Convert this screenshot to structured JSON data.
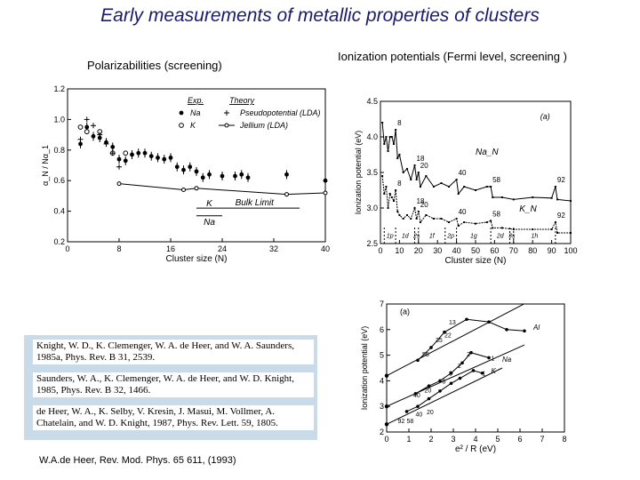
{
  "slide": {
    "title": "Early measurements of metallic properties of clusters",
    "left_heading": "Polarizabilities (screening)",
    "right_heading": "Ionization potentials (Fermi level, screening )",
    "citation": "W.A.de Heer, Rev. Mod. Phys. 65 611, (1993)"
  },
  "references": [
    "Knight, W. D., K. Clemenger, W. A. de Heer, and W. A. Saunders, 1985a, Phys. Rev. B 31, 2539.",
    "Saunders, W. A., K. Clemenger, W. A. de Heer, and W. D. Knight, 1985, Phys. Rev. B 32, 1466.",
    "de Heer, W. A., K. Selby, V. Kresin, J. Masui, M. Vollmer, A. Chatelain, and W. D. Knight, 1987, Phys. Rev. Lett. 59, 1805."
  ],
  "chart_data": [
    {
      "type": "scatter",
      "xlabel": "Cluster size (N)",
      "ylabel": "α_N / Nα_1",
      "xlim": [
        0,
        40
      ],
      "ylim": [
        0.2,
        1.2
      ],
      "xticks": [
        "0",
        "8",
        "16",
        "24",
        "32",
        "40"
      ],
      "yticks": [
        "0.2",
        "0.4",
        "0.6",
        "0.8",
        "1.0",
        "1.2"
      ],
      "legend": {
        "exp_label": "Exp.",
        "theory_label": "Theory",
        "rows": [
          {
            "exp_marker": "filled-circle",
            "name": "Na",
            "theory_marker": "plus",
            "theory": "Pseudopotential (LDA)"
          },
          {
            "exp_marker": "open-circle",
            "name": "K",
            "theory_marker": "line-circle",
            "theory": "Jellium (LDA)"
          }
        ]
      },
      "series": [
        {
          "name": "Na",
          "marker": "filled-circle",
          "x": [
            2,
            3,
            4,
            5,
            6,
            7,
            8,
            9,
            10,
            11,
            12,
            13,
            14,
            15,
            16,
            17,
            18,
            19,
            20,
            21,
            22,
            24,
            26,
            27,
            28,
            34,
            40
          ],
          "y": [
            0.84,
            0.95,
            0.89,
            0.88,
            0.85,
            0.82,
            0.74,
            0.73,
            0.77,
            0.78,
            0.78,
            0.76,
            0.75,
            0.74,
            0.75,
            0.69,
            0.67,
            0.69,
            0.66,
            0.62,
            0.64,
            0.63,
            0.63,
            0.64,
            0.62,
            0.64,
            0.6
          ]
        },
        {
          "name": "K",
          "marker": "open-circle",
          "x": [
            2,
            3,
            5,
            7,
            9
          ],
          "y": [
            0.95,
            0.92,
            0.92,
            0.78,
            0.78
          ]
        },
        {
          "name": "Pseudopotential (LDA)",
          "marker": "plus",
          "x": [
            2,
            3,
            4,
            5,
            6,
            7,
            8
          ],
          "y": [
            0.87,
            1.0,
            0.96,
            0.9,
            0.84,
            0.78,
            0.69
          ]
        },
        {
          "name": "Jellium (LDA)",
          "marker": "line-circle",
          "x": [
            8,
            18,
            20,
            34,
            40
          ],
          "y": [
            0.58,
            0.54,
            0.55,
            0.51,
            0.52
          ]
        }
      ],
      "annotations": {
        "k_label": "K",
        "na_label": "Na",
        "bulk_limit": "Bulk Limit",
        "k_bulk": 0.42,
        "na_bulk": 0.37
      }
    },
    {
      "type": "line",
      "xlabel": "Cluster size (N)",
      "ylabel": "Ionization potential (eV)",
      "xlim": [
        0,
        100
      ],
      "ylim": [
        2.5,
        4.5
      ],
      "xticks": [
        "0",
        "10",
        "20",
        "30",
        "40",
        "50",
        "60",
        "70",
        "80",
        "90",
        "100"
      ],
      "yticks": [
        "2.5",
        "3.0",
        "3.5",
        "4.0",
        "4.5"
      ],
      "panel_label": "(a)",
      "series": [
        {
          "name": "Na_N",
          "x": [
            1,
            2,
            3,
            4,
            5,
            6,
            7,
            8,
            9,
            10,
            12,
            14,
            16,
            18,
            19,
            20,
            21,
            24,
            28,
            32,
            36,
            40,
            41,
            44,
            50,
            56,
            58,
            59,
            64,
            70,
            80,
            90,
            92,
            93,
            100
          ],
          "y": [
            4.2,
            3.9,
            4.0,
            3.8,
            4.0,
            4.0,
            3.9,
            4.1,
            3.7,
            3.75,
            3.5,
            3.55,
            3.4,
            3.6,
            3.4,
            3.5,
            3.3,
            3.45,
            3.3,
            3.35,
            3.3,
            3.4,
            3.2,
            3.3,
            3.25,
            3.3,
            3.3,
            3.15,
            3.15,
            3.12,
            3.15,
            3.14,
            3.3,
            3.12,
            3.1
          ]
        },
        {
          "name": "K_N",
          "x": [
            1,
            2,
            3,
            4,
            5,
            6,
            7,
            8,
            9,
            10,
            12,
            14,
            16,
            18,
            19,
            20,
            21,
            24,
            28,
            32,
            36,
            40,
            41,
            44,
            50,
            56,
            58,
            59,
            64,
            70,
            80,
            90,
            92,
            93,
            100
          ],
          "y": [
            3.45,
            3.2,
            3.3,
            3.0,
            3.2,
            3.15,
            3.1,
            3.25,
            2.95,
            2.9,
            2.85,
            2.9,
            2.85,
            3.0,
            2.85,
            2.95,
            2.8,
            2.9,
            2.85,
            2.85,
            2.8,
            2.85,
            2.75,
            2.8,
            2.78,
            2.8,
            2.82,
            2.72,
            2.72,
            2.7,
            2.7,
            2.7,
            2.8,
            2.65,
            2.65
          ]
        }
      ],
      "curve_labels": {
        "na": "Na_N",
        "k": "K_N"
      },
      "peak_labels": {
        "na": [
          {
            "x": 8,
            "text": "8"
          },
          {
            "x": 18,
            "text": "18"
          },
          {
            "x": 20,
            "text": "20"
          },
          {
            "x": 40,
            "text": "40"
          },
          {
            "x": 58,
            "text": "58"
          },
          {
            "x": 92,
            "text": "92"
          }
        ],
        "k": [
          {
            "x": 8,
            "text": "8"
          },
          {
            "x": 18,
            "text": "18"
          },
          {
            "x": 20,
            "text": "20"
          },
          {
            "x": 40,
            "text": "40"
          },
          {
            "x": 58,
            "text": "58"
          },
          {
            "x": 92,
            "text": "92"
          }
        ]
      },
      "shell_labels": [
        "1p",
        "1d",
        "2s",
        "1f",
        "2p",
        "1g",
        "2d",
        "3s",
        "1h"
      ]
    },
    {
      "type": "scatter",
      "xlabel": "e² / R  (eV)",
      "ylabel": "Ionization potential (eV)",
      "xlim": [
        0,
        8
      ],
      "ylim": [
        2,
        7
      ],
      "xticks": [
        "0",
        "1",
        "2",
        "3",
        "4",
        "5",
        "6",
        "7",
        "8"
      ],
      "yticks": [
        "2",
        "3",
        "4",
        "5",
        "6",
        "7"
      ],
      "panel_label": "(a)",
      "series": [
        {
          "name": "Al",
          "x": [
            1.4,
            2.0,
            2.6,
            3.6,
            4.6,
            5.4,
            6.2
          ],
          "y": [
            4.8,
            5.3,
            5.9,
            6.4,
            6.3,
            6.0,
            5.95
          ]
        },
        {
          "name": "Na",
          "x": [
            1.3,
            1.9,
            2.4,
            2.9,
            3.4,
            3.8,
            4.6
          ],
          "y": [
            3.5,
            3.8,
            4.0,
            4.3,
            4.7,
            5.1,
            4.9
          ]
        },
        {
          "name": "K",
          "x": [
            0.9,
            1.4,
            1.9,
            2.4,
            2.9,
            3.3,
            3.9,
            4.3
          ],
          "y": [
            2.8,
            3.0,
            3.3,
            3.6,
            3.9,
            4.1,
            4.4,
            4.3
          ]
        }
      ],
      "fit_lines": [
        {
          "x": [
            0,
            7.5
          ],
          "y": [
            4.2,
            7.6
          ]
        },
        {
          "x": [
            0,
            6.2
          ],
          "y": [
            3.0,
            5.4
          ]
        },
        {
          "x": [
            0,
            5.2
          ],
          "y": [
            2.3,
            4.5
          ]
        }
      ],
      "point_labels": [
        {
          "x": 0.5,
          "y": 2.35,
          "text": "92"
        },
        {
          "x": 0.9,
          "y": 2.35,
          "text": "58"
        },
        {
          "x": 1.3,
          "y": 2.6,
          "text": "40"
        },
        {
          "x": 1.8,
          "y": 2.7,
          "text": "20"
        },
        {
          "x": 1.2,
          "y": 3.35,
          "text": "40"
        },
        {
          "x": 1.7,
          "y": 3.55,
          "text": "20"
        },
        {
          "x": 2.5,
          "y": 3.9,
          "text": "8"
        },
        {
          "x": 2.8,
          "y": 4.2,
          "text": "8"
        },
        {
          "x": 3.2,
          "y": 4.5,
          "text": "2"
        },
        {
          "x": 3.6,
          "y": 4.95,
          "text": "2"
        },
        {
          "x": 1.6,
          "y": 4.95,
          "text": "55"
        },
        {
          "x": 2.2,
          "y": 5.5,
          "text": "35"
        },
        {
          "x": 2.6,
          "y": 5.7,
          "text": "22"
        },
        {
          "x": 2.8,
          "y": 6.2,
          "text": "13"
        },
        {
          "x": 4.3,
          "y": 4.2,
          "text": "1"
        },
        {
          "x": 4.7,
          "y": 4.8,
          "text": "1"
        }
      ],
      "series_labels": [
        {
          "x": 6.6,
          "y": 6.0,
          "text": "Al"
        },
        {
          "x": 5.2,
          "y": 4.75,
          "text": "Na"
        },
        {
          "x": 4.7,
          "y": 4.3,
          "text": "K"
        }
      ]
    }
  ]
}
